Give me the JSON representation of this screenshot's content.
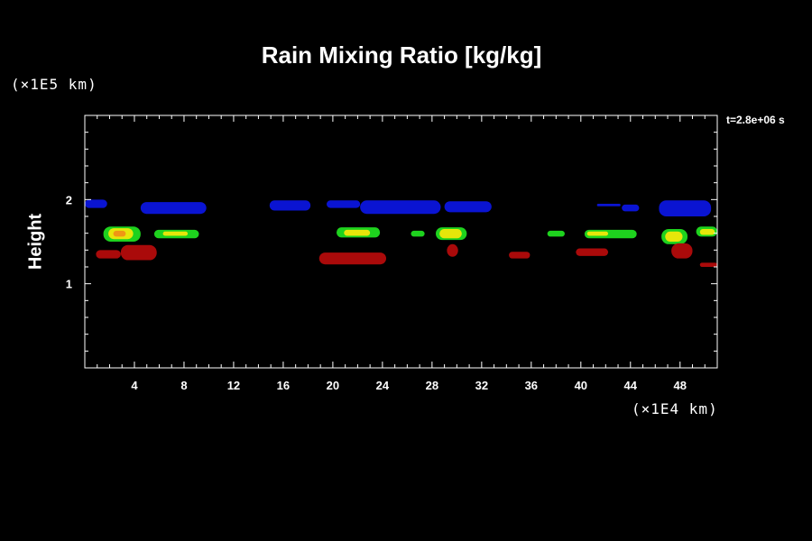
{
  "chart_data": {
    "type": "heatmap",
    "title": "Rain Mixing Ratio [kg/kg]",
    "time_label": "t=2.8e+06 s",
    "ylabel": "Height",
    "y_unit": "(×1E5 km)",
    "x_unit": "(×1E4 km)",
    "xlim": [
      0,
      51
    ],
    "ylim": [
      0,
      3
    ],
    "x_ticks": [
      4,
      8,
      12,
      16,
      20,
      24,
      28,
      32,
      36,
      40,
      44,
      48
    ],
    "y_ticks": [
      1,
      2
    ],
    "colors": {
      "blue": "#0a14d2",
      "green": "#1ed21e",
      "yellow": "#e6e60a",
      "orange": "#f09614",
      "red": "#aa0a0a"
    },
    "features": [
      {
        "level": "blue",
        "x": [
          0,
          1.8
        ],
        "y": [
          1.9,
          2.0
        ]
      },
      {
        "level": "blue",
        "x": [
          4.5,
          9.8
        ],
        "y": [
          1.83,
          1.97
        ]
      },
      {
        "level": "blue",
        "x": [
          14.9,
          18.2
        ],
        "y": [
          1.87,
          1.99
        ]
      },
      {
        "level": "blue",
        "x": [
          19.5,
          22.2
        ],
        "y": [
          1.9,
          1.99
        ]
      },
      {
        "level": "blue",
        "x": [
          22.2,
          28.7
        ],
        "y": [
          1.83,
          1.99
        ]
      },
      {
        "level": "blue",
        "x": [
          29,
          32.8
        ],
        "y": [
          1.85,
          1.98
        ]
      },
      {
        "level": "blue",
        "x": [
          41.3,
          43.2
        ],
        "y": [
          1.92,
          1.95
        ]
      },
      {
        "level": "blue",
        "x": [
          43.3,
          44.7
        ],
        "y": [
          1.86,
          1.94
        ]
      },
      {
        "level": "blue",
        "x": [
          46.3,
          50.5
        ],
        "y": [
          1.8,
          1.99
        ]
      },
      {
        "level": "green",
        "x": [
          1.5,
          4.5
        ],
        "y": [
          1.5,
          1.68
        ]
      },
      {
        "level": "yellow",
        "x": [
          1.9,
          3.9
        ],
        "y": [
          1.53,
          1.66
        ]
      },
      {
        "level": "orange",
        "x": [
          2.3,
          3.3
        ],
        "y": [
          1.56,
          1.63
        ]
      },
      {
        "level": "green",
        "x": [
          5.6,
          9.2
        ],
        "y": [
          1.54,
          1.64
        ]
      },
      {
        "level": "yellow",
        "x": [
          6.3,
          8.3
        ],
        "y": [
          1.57,
          1.62
        ]
      },
      {
        "level": "green",
        "x": [
          20.3,
          23.8
        ],
        "y": [
          1.55,
          1.67
        ]
      },
      {
        "level": "yellow",
        "x": [
          20.9,
          23
        ],
        "y": [
          1.57,
          1.64
        ]
      },
      {
        "level": "green",
        "x": [
          26.3,
          27.4
        ],
        "y": [
          1.56,
          1.63
        ]
      },
      {
        "level": "green",
        "x": [
          28.3,
          30.8
        ],
        "y": [
          1.52,
          1.67
        ]
      },
      {
        "level": "yellow",
        "x": [
          28.6,
          30.4
        ],
        "y": [
          1.54,
          1.65
        ]
      },
      {
        "level": "green",
        "x": [
          37.3,
          38.7
        ],
        "y": [
          1.56,
          1.63
        ]
      },
      {
        "level": "green",
        "x": [
          40.3,
          44.5
        ],
        "y": [
          1.54,
          1.64
        ]
      },
      {
        "level": "yellow",
        "x": [
          40.5,
          42.2
        ],
        "y": [
          1.57,
          1.62
        ]
      },
      {
        "level": "green",
        "x": [
          46.5,
          48.6
        ],
        "y": [
          1.47,
          1.65
        ]
      },
      {
        "level": "yellow",
        "x": [
          46.8,
          48.2
        ],
        "y": [
          1.5,
          1.62
        ]
      },
      {
        "level": "green",
        "x": [
          49.3,
          51
        ],
        "y": [
          1.56,
          1.68
        ]
      },
      {
        "level": "yellow",
        "x": [
          49.6,
          50.8
        ],
        "y": [
          1.58,
          1.65
        ]
      },
      {
        "level": "red",
        "x": [
          0.9,
          2.9
        ],
        "y": [
          1.3,
          1.4
        ]
      },
      {
        "level": "red",
        "x": [
          2.9,
          5.8
        ],
        "y": [
          1.28,
          1.46
        ]
      },
      {
        "level": "red",
        "x": [
          18.9,
          24.3
        ],
        "y": [
          1.23,
          1.37
        ]
      },
      {
        "level": "red",
        "x": [
          29.2,
          30.1
        ],
        "y": [
          1.32,
          1.47
        ]
      },
      {
        "level": "red",
        "x": [
          34.2,
          35.9
        ],
        "y": [
          1.3,
          1.38
        ]
      },
      {
        "level": "red",
        "x": [
          39.6,
          42.2
        ],
        "y": [
          1.33,
          1.42
        ]
      },
      {
        "level": "red",
        "x": [
          47.3,
          49
        ],
        "y": [
          1.3,
          1.48
        ]
      },
      {
        "level": "red",
        "x": [
          49.6,
          51
        ],
        "y": [
          1.2,
          1.25
        ]
      }
    ]
  }
}
